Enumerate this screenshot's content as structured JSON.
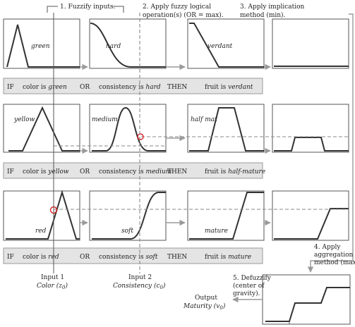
{
  "steps": {
    "s1": "1. Fuzzify inputs.",
    "s2_l1": "2. Apply fuzzy logical",
    "s2_l2": "operation(s) (OR = max).",
    "s3_l1": "3. Apply implication",
    "s3_l2": "method (min).",
    "s4_l1": "4. Apply",
    "s4_l2": "aggregation",
    "s4_l3": "method (max)",
    "s5_l1": "5. Defuzzify",
    "s5_l2": "(center of",
    "s5_l3": "gravity)."
  },
  "rules": [
    {
      "if": "IF",
      "input1_pre": "color is ",
      "input1_val": "green",
      "or": "OR",
      "input2_pre": "consistency is ",
      "input2_val": "hard",
      "then": "THEN",
      "out_pre": "fruit is ",
      "out_val": "verdant"
    },
    {
      "if": "IF",
      "input1_pre": "color is ",
      "input1_val": "yellow",
      "or": "OR",
      "input2_pre": "consistency is ",
      "input2_val": "medium",
      "then": "THEN",
      "out_pre": "fruit is ",
      "out_val": "half-mature"
    },
    {
      "if": "IF",
      "input1_pre": "color is ",
      "input1_val": "red",
      "or": "OR",
      "input2_pre": "consistency is ",
      "input2_val": "soft",
      "then": "THEN",
      "out_pre": "fruit is ",
      "out_val": "mature"
    }
  ],
  "membership_labels": {
    "row1": [
      "green",
      "hard",
      "verdant"
    ],
    "row2": [
      "yellow",
      "medium",
      "half mat"
    ],
    "row3": [
      "red",
      "soft",
      "mature"
    ]
  },
  "inputs": {
    "input1_l1": "Input 1",
    "input1_l2": "Color (z",
    "input1_sub": "0",
    "input2_l1": "Input 2",
    "input2_l2": "Consistency (c",
    "input2_sub": "0"
  },
  "output": {
    "l1": "Output",
    "l2": "Maturity (v",
    "sub": "0"
  }
}
